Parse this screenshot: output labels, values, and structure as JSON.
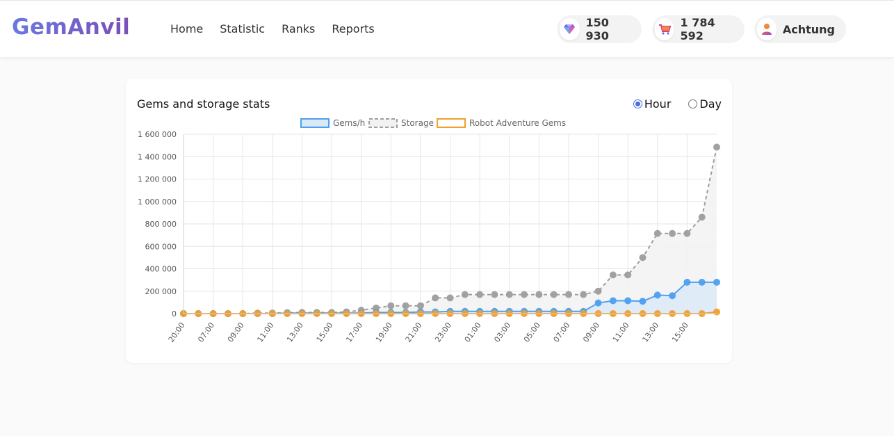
{
  "header": {
    "logo": "GemAnvil",
    "nav": [
      "Home",
      "Statistic",
      "Ranks",
      "Reports"
    ],
    "gems": "150 930",
    "gems_icon": "diamond-icon",
    "storage": "1 784 592",
    "storage_icon": "cart-icon",
    "user": "Achtung",
    "user_icon": "user-icon"
  },
  "card": {
    "title": "Gems and storage stats",
    "options": [
      "Hour",
      "Day"
    ],
    "selected": "Hour"
  },
  "chart_data": {
    "type": "line",
    "legend_position": "top",
    "grid": true,
    "ylim": [
      0,
      1600000
    ],
    "y_ticks": [
      "1 600 000",
      "1 400 000",
      "1 200 000",
      "1 000 000",
      "800 000",
      "600 000",
      "400 000",
      "200 000",
      "0"
    ],
    "x_tick_labels": [
      "20:00",
      "07:00",
      "09:00",
      "11:00",
      "13:00",
      "15:00",
      "17:00",
      "19:00",
      "21:00",
      "23:00",
      "01:00",
      "03:00",
      "05:00",
      "07:00",
      "09:00",
      "11:00",
      "13:00",
      "15:00"
    ],
    "series": [
      {
        "name": "Gems/h",
        "color": "#4ea0f0",
        "fill": "#dbe9f7",
        "style": "solid",
        "values": [
          0,
          0,
          0,
          0,
          0,
          0,
          0,
          5000,
          5000,
          5000,
          5000,
          5000,
          5000,
          10000,
          10000,
          10000,
          15000,
          15000,
          20000,
          20000,
          20000,
          20000,
          20000,
          20000,
          20000,
          20000,
          20000,
          20000,
          95000,
          115000,
          115000,
          110000,
          165000,
          160000,
          280000,
          280000,
          280000
        ]
      },
      {
        "name": "Storage",
        "color": "#9e9e9e",
        "fill": "#f2f2f2",
        "style": "dashed",
        "values": [
          0,
          0,
          0,
          0,
          0,
          5000,
          5000,
          8000,
          10000,
          10000,
          10000,
          15000,
          30000,
          50000,
          70000,
          70000,
          70000,
          140000,
          140000,
          170000,
          170000,
          170000,
          170000,
          170000,
          170000,
          170000,
          170000,
          170000,
          200000,
          345000,
          345000,
          500000,
          715000,
          715000,
          715000,
          860000,
          1485000
        ]
      },
      {
        "name": "Robot Adventure Gems",
        "color": "#f0a030",
        "fill": "none",
        "style": "solid",
        "values": [
          0,
          0,
          0,
          0,
          0,
          0,
          0,
          0,
          0,
          0,
          0,
          0,
          0,
          0,
          0,
          0,
          0,
          0,
          0,
          0,
          0,
          0,
          0,
          0,
          0,
          0,
          0,
          0,
          0,
          0,
          0,
          0,
          0,
          0,
          0,
          0,
          15000
        ]
      }
    ]
  }
}
